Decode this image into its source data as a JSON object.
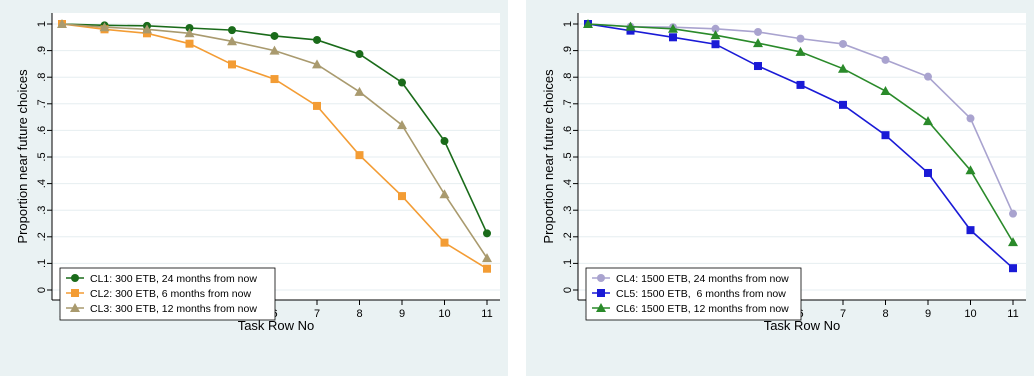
{
  "chart_data": [
    {
      "type": "line",
      "xlabel": "Task Row No",
      "ylabel": "Proportion near future choices",
      "x": [
        1,
        2,
        3,
        4,
        5,
        6,
        7,
        8,
        9,
        10,
        11
      ],
      "xlim": [
        1,
        11
      ],
      "ylim": [
        0,
        1
      ],
      "yticks": [
        0,
        0.1,
        0.2,
        0.3,
        0.4,
        0.5,
        0.6,
        0.7,
        0.8,
        0.9,
        1
      ],
      "ytick_labels": [
        "0",
        ".1",
        ".2",
        ".3",
        ".4",
        ".5",
        ".6",
        ".7",
        ".8",
        ".9",
        "1"
      ],
      "grid": true,
      "legend_position": "bottom-left",
      "series": [
        {
          "name": "CL1: 300 ETB, 24 months from now",
          "color": "#1a6b1a",
          "marker": "circle",
          "values": [
            1.0,
            0.995,
            0.993,
            0.985,
            0.977,
            0.955,
            0.94,
            0.887,
            0.78,
            0.56,
            0.213
          ]
        },
        {
          "name": "CL2: 300 ETB, 6 months from now",
          "color": "#f39c34",
          "marker": "square",
          "values": [
            1.0,
            0.98,
            0.965,
            0.926,
            0.848,
            0.793,
            0.692,
            0.507,
            0.353,
            0.178,
            0.08
          ]
        },
        {
          "name": "CL3: 300 ETB, 12 months from now",
          "color": "#a99a6e",
          "marker": "triangle",
          "values": [
            1.0,
            0.988,
            0.98,
            0.965,
            0.935,
            0.9,
            0.848,
            0.745,
            0.62,
            0.36,
            0.12
          ]
        }
      ]
    },
    {
      "type": "line",
      "xlabel": "Task Row No",
      "ylabel": "Proportion near future choices",
      "x": [
        1,
        2,
        3,
        4,
        5,
        6,
        7,
        8,
        9,
        10,
        11
      ],
      "xlim": [
        1,
        11
      ],
      "ylim": [
        0,
        1
      ],
      "yticks": [
        0,
        0.1,
        0.2,
        0.3,
        0.4,
        0.5,
        0.6,
        0.7,
        0.8,
        0.9,
        1
      ],
      "ytick_labels": [
        "0",
        ".1",
        ".2",
        ".3",
        ".4",
        ".5",
        ".6",
        ".7",
        ".8",
        ".9",
        "1"
      ],
      "grid": true,
      "legend_position": "bottom-left",
      "series": [
        {
          "name": "CL4: 1500 ETB, 24 months from now",
          "color": "#a9a3cf",
          "marker": "circle",
          "values": [
            1.0,
            0.99,
            0.988,
            0.982,
            0.97,
            0.945,
            0.925,
            0.865,
            0.802,
            0.645,
            0.287
          ]
        },
        {
          "name": "CL5: 1500 ETB,  6 months from now",
          "color": "#1a1ad6",
          "marker": "square",
          "values": [
            1.0,
            0.975,
            0.95,
            0.924,
            0.842,
            0.771,
            0.696,
            0.582,
            0.44,
            0.225,
            0.082
          ]
        },
        {
          "name": "CL6: 1500 ETB, 12 months from now",
          "color": "#2a8a2a",
          "marker": "triangle",
          "values": [
            1.0,
            0.99,
            0.982,
            0.958,
            0.928,
            0.895,
            0.832,
            0.748,
            0.635,
            0.45,
            0.18
          ]
        }
      ]
    }
  ]
}
